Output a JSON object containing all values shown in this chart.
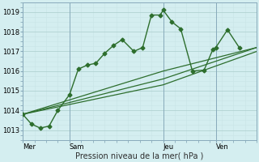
{
  "background_color": "#d4eef0",
  "grid_color_major": "#aacccc",
  "grid_color_minor": "#c8e4e6",
  "line_color": "#2d6e2d",
  "title": "Pression niveau de la mer( hPa )",
  "xlim": [
    0,
    80
  ],
  "ylim": [
    1012.5,
    1019.5
  ],
  "yticks": [
    1013,
    1014,
    1015,
    1016,
    1017,
    1018,
    1019
  ],
  "day_ticks": [
    {
      "x": 0,
      "label": "Mer"
    },
    {
      "x": 16,
      "label": "Sam"
    },
    {
      "x": 48,
      "label": "Jeu"
    },
    {
      "x": 66,
      "label": "Ven"
    }
  ],
  "series1": {
    "x": [
      0,
      3,
      6,
      9,
      12,
      16,
      19,
      22,
      25,
      28,
      31,
      34,
      38,
      41,
      44,
      47,
      48,
      51,
      54,
      58,
      62,
      65,
      66,
      70,
      74
    ],
    "y": [
      1013.8,
      1013.3,
      1013.1,
      1013.2,
      1014.0,
      1014.8,
      1016.1,
      1016.3,
      1016.4,
      1016.9,
      1017.3,
      1017.6,
      1017.0,
      1017.2,
      1018.85,
      1018.85,
      1019.1,
      1018.5,
      1018.15,
      1016.0,
      1016.05,
      1017.1,
      1017.2,
      1018.1,
      1017.2
    ],
    "marker": "D",
    "markersize": 2.5,
    "linewidth": 1.0
  },
  "series2": {
    "x": [
      0,
      48,
      80
    ],
    "y": [
      1013.8,
      1015.3,
      1017.0
    ],
    "linewidth": 0.9
  },
  "series3": {
    "x": [
      0,
      48,
      80
    ],
    "y": [
      1013.8,
      1015.6,
      1017.2
    ],
    "linewidth": 0.9
  },
  "series4": {
    "x": [
      0,
      48,
      80
    ],
    "y": [
      1013.8,
      1016.0,
      1017.2
    ],
    "linewidth": 0.9
  }
}
